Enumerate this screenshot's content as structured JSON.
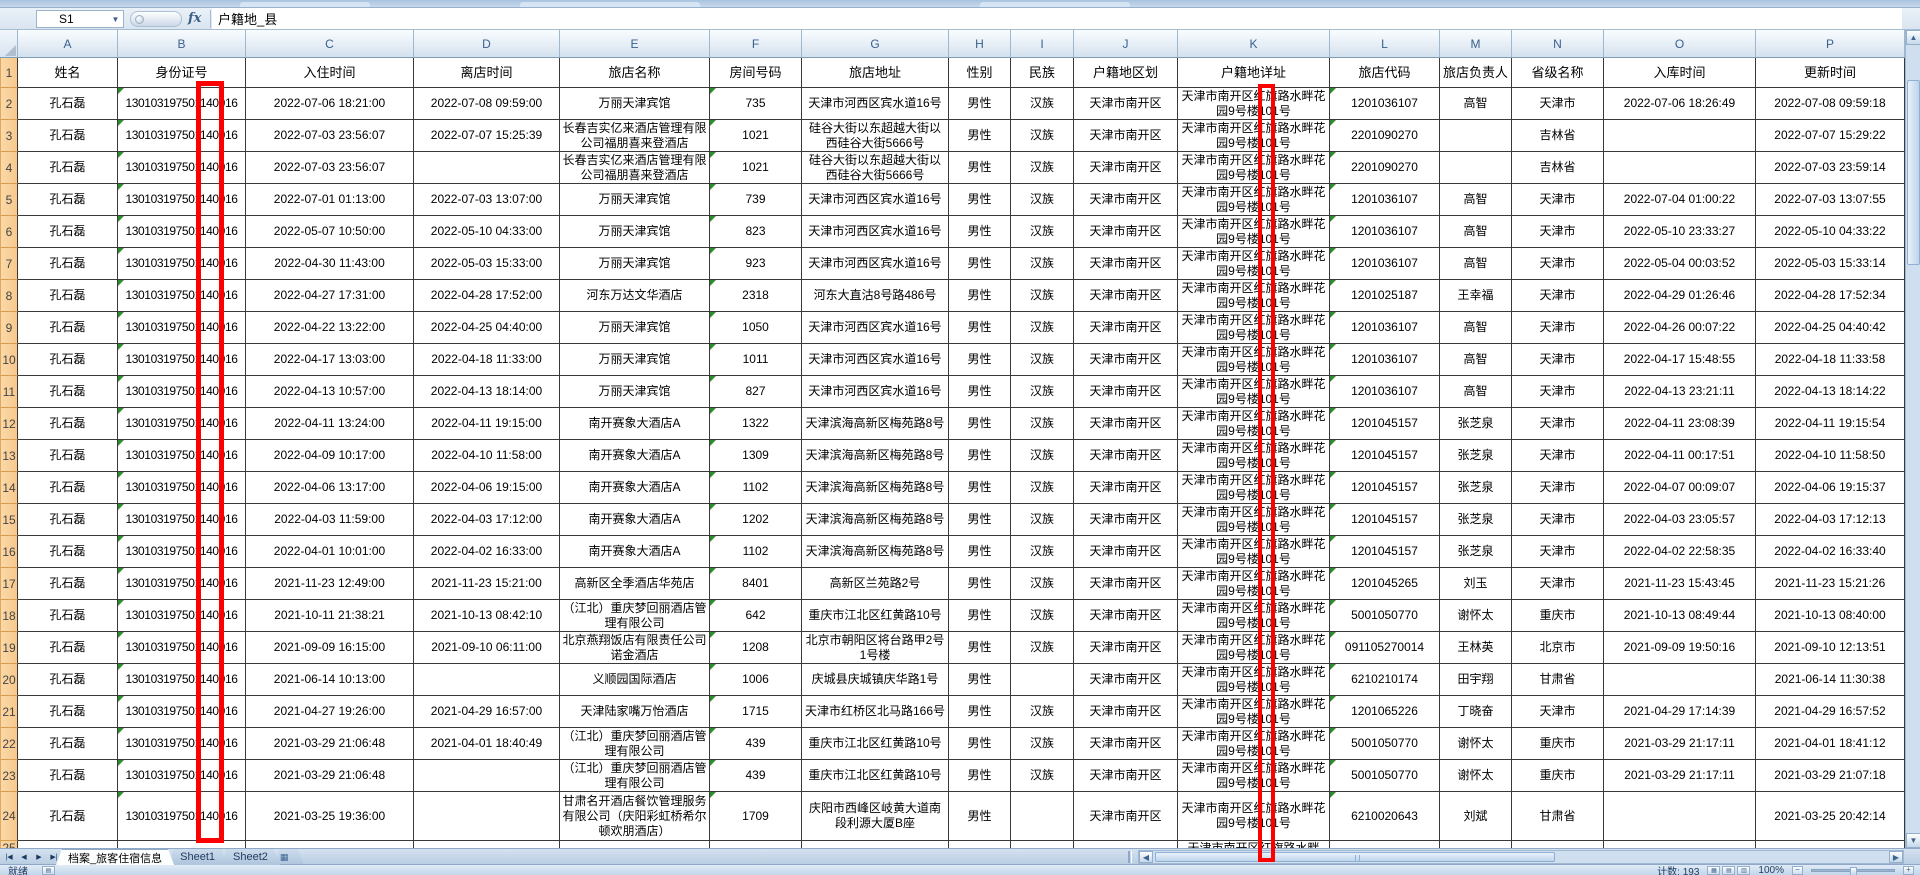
{
  "formula_bar": {
    "name_box": "S1",
    "formula": "户籍地_县",
    "fx": "fx"
  },
  "grid": {
    "column_letters": [
      "A",
      "B",
      "C",
      "D",
      "E",
      "F",
      "G",
      "H",
      "I",
      "J",
      "K",
      "L",
      "M",
      "N",
      "O",
      "P"
    ],
    "headers": [
      "姓名",
      "身份证号",
      "入住时间",
      "离店时间",
      "旅店名称",
      "房间号码",
      "旅店地址",
      "性别",
      "民族",
      "户籍地区划",
      "户籍地详址",
      "旅店代码",
      "旅店负责人",
      "省级名称",
      "入库时间",
      "更新时间"
    ],
    "rows": [
      {
        "n": "2",
        "name": "孔石磊",
        "id": "130103197501140016",
        "checkin": "2022-07-06 18:21:00",
        "checkout": "2022-07-08 09:59:00",
        "hotel": "万丽天津宾馆",
        "room": "735",
        "hotel_addr": "天津市河西区宾水道16号",
        "gender": "男性",
        "ethnicity": "汉族",
        "region": "天津市南开区",
        "addr": "天津市南开区红旗路水畔花园9号楼101号",
        "code": "1201036107",
        "manager": "高智",
        "province": "天津市",
        "entry": "2022-07-06 18:26:49",
        "update": "2022-07-08 09:59:18"
      },
      {
        "n": "3",
        "name": "孔石磊",
        "id": "130103197501140016",
        "checkin": "2022-07-03 23:56:07",
        "checkout": "2022-07-07 15:25:39",
        "hotel": "长春吉实亿来酒店管理有限公司福朋喜来登酒店",
        "room": "1021",
        "hotel_addr": "硅谷大街以东超越大街以西硅谷大街5666号",
        "gender": "男性",
        "ethnicity": "汉族",
        "region": "天津市南开区",
        "addr": "天津市南开区红旗路水畔花园9号楼101号",
        "code": "2201090270",
        "manager": "",
        "province": "吉林省",
        "entry": "",
        "update": "2022-07-07 15:29:22"
      },
      {
        "n": "4",
        "name": "孔石磊",
        "id": "130103197501140016",
        "checkin": "2022-07-03 23:56:07",
        "checkout": "",
        "hotel": "长春吉实亿来酒店管理有限公司福朋喜来登酒店",
        "room": "1021",
        "hotel_addr": "硅谷大街以东超越大街以西硅谷大街5666号",
        "gender": "男性",
        "ethnicity": "汉族",
        "region": "天津市南开区",
        "addr": "天津市南开区红旗路水畔花园9号楼101号",
        "code": "2201090270",
        "manager": "",
        "province": "吉林省",
        "entry": "",
        "update": "2022-07-03 23:59:14"
      },
      {
        "n": "5",
        "name": "孔石磊",
        "id": "130103197501140016",
        "checkin": "2022-07-01 01:13:00",
        "checkout": "2022-07-03 13:07:00",
        "hotel": "万丽天津宾馆",
        "room": "739",
        "hotel_addr": "天津市河西区宾水道16号",
        "gender": "男性",
        "ethnicity": "汉族",
        "region": "天津市南开区",
        "addr": "天津市南开区红旗路水畔花园9号楼101号",
        "code": "1201036107",
        "manager": "高智",
        "province": "天津市",
        "entry": "2022-07-04 01:00:22",
        "update": "2022-07-03 13:07:55"
      },
      {
        "n": "6",
        "name": "孔石磊",
        "id": "130103197501140016",
        "checkin": "2022-05-07 10:50:00",
        "checkout": "2022-05-10 04:33:00",
        "hotel": "万丽天津宾馆",
        "room": "823",
        "hotel_addr": "天津市河西区宾水道16号",
        "gender": "男性",
        "ethnicity": "汉族",
        "region": "天津市南开区",
        "addr": "天津市南开区红旗路水畔花园9号楼101号",
        "code": "1201036107",
        "manager": "高智",
        "province": "天津市",
        "entry": "2022-05-10 23:33:27",
        "update": "2022-05-10 04:33:22"
      },
      {
        "n": "7",
        "name": "孔石磊",
        "id": "130103197501140016",
        "checkin": "2022-04-30 11:43:00",
        "checkout": "2022-05-03 15:33:00",
        "hotel": "万丽天津宾馆",
        "room": "923",
        "hotel_addr": "天津市河西区宾水道16号",
        "gender": "男性",
        "ethnicity": "汉族",
        "region": "天津市南开区",
        "addr": "天津市南开区红旗路水畔花园9号楼101号",
        "code": "1201036107",
        "manager": "高智",
        "province": "天津市",
        "entry": "2022-05-04 00:03:52",
        "update": "2022-05-03 15:33:14"
      },
      {
        "n": "8",
        "name": "孔石磊",
        "id": "130103197501140016",
        "checkin": "2022-04-27 17:31:00",
        "checkout": "2022-04-28 17:52:00",
        "hotel": "河东万达文华酒店",
        "room": "2318",
        "hotel_addr": "河东大直沽8号路486号",
        "gender": "男性",
        "ethnicity": "汉族",
        "region": "天津市南开区",
        "addr": "天津市南开区红旗路水畔花园9号楼101号",
        "code": "1201025187",
        "manager": "王幸福",
        "province": "天津市",
        "entry": "2022-04-29 01:26:46",
        "update": "2022-04-28 17:52:34"
      },
      {
        "n": "9",
        "name": "孔石磊",
        "id": "130103197501140016",
        "checkin": "2022-04-22 13:22:00",
        "checkout": "2022-04-25 04:40:00",
        "hotel": "万丽天津宾馆",
        "room": "1050",
        "hotel_addr": "天津市河西区宾水道16号",
        "gender": "男性",
        "ethnicity": "汉族",
        "region": "天津市南开区",
        "addr": "天津市南开区红旗路水畔花园9号楼101号",
        "code": "1201036107",
        "manager": "高智",
        "province": "天津市",
        "entry": "2022-04-26 00:07:22",
        "update": "2022-04-25 04:40:42"
      },
      {
        "n": "10",
        "name": "孔石磊",
        "id": "130103197501140016",
        "checkin": "2022-04-17 13:03:00",
        "checkout": "2022-04-18 11:33:00",
        "hotel": "万丽天津宾馆",
        "room": "1011",
        "hotel_addr": "天津市河西区宾水道16号",
        "gender": "男性",
        "ethnicity": "汉族",
        "region": "天津市南开区",
        "addr": "天津市南开区红旗路水畔花园9号楼101号",
        "code": "1201036107",
        "manager": "高智",
        "province": "天津市",
        "entry": "2022-04-17 15:48:55",
        "update": "2022-04-18 11:33:58"
      },
      {
        "n": "11",
        "name": "孔石磊",
        "id": "130103197501140016",
        "checkin": "2022-04-13 10:57:00",
        "checkout": "2022-04-13 18:14:00",
        "hotel": "万丽天津宾馆",
        "room": "827",
        "hotel_addr": "天津市河西区宾水道16号",
        "gender": "男性",
        "ethnicity": "汉族",
        "region": "天津市南开区",
        "addr": "天津市南开区红旗路水畔花园9号楼101号",
        "code": "1201036107",
        "manager": "高智",
        "province": "天津市",
        "entry": "2022-04-13 23:21:11",
        "update": "2022-04-13 18:14:22"
      },
      {
        "n": "12",
        "name": "孔石磊",
        "id": "130103197501140016",
        "checkin": "2022-04-11 13:24:00",
        "checkout": "2022-04-11 19:15:00",
        "hotel": "南开赛象大酒店A",
        "room": "1322",
        "hotel_addr": "天津滨海高新区梅苑路8号",
        "gender": "男性",
        "ethnicity": "汉族",
        "region": "天津市南开区",
        "addr": "天津市南开区红旗路水畔花园9号楼101号",
        "code": "1201045157",
        "manager": "张芝泉",
        "province": "天津市",
        "entry": "2022-04-11 23:08:39",
        "update": "2022-04-11 19:15:54"
      },
      {
        "n": "13",
        "name": "孔石磊",
        "id": "130103197501140016",
        "checkin": "2022-04-09 10:17:00",
        "checkout": "2022-04-10 11:58:00",
        "hotel": "南开赛象大酒店A",
        "room": "1309",
        "hotel_addr": "天津滨海高新区梅苑路8号",
        "gender": "男性",
        "ethnicity": "汉族",
        "region": "天津市南开区",
        "addr": "天津市南开区红旗路水畔花园9号楼101号",
        "code": "1201045157",
        "manager": "张芝泉",
        "province": "天津市",
        "entry": "2022-04-11 00:17:51",
        "update": "2022-04-10 11:58:50"
      },
      {
        "n": "14",
        "name": "孔石磊",
        "id": "130103197501140016",
        "checkin": "2022-04-06 13:17:00",
        "checkout": "2022-04-06 19:15:00",
        "hotel": "南开赛象大酒店A",
        "room": "1102",
        "hotel_addr": "天津滨海高新区梅苑路8号",
        "gender": "男性",
        "ethnicity": "汉族",
        "region": "天津市南开区",
        "addr": "天津市南开区红旗路水畔花园9号楼101号",
        "code": "1201045157",
        "manager": "张芝泉",
        "province": "天津市",
        "entry": "2022-04-07 00:09:07",
        "update": "2022-04-06 19:15:37"
      },
      {
        "n": "15",
        "name": "孔石磊",
        "id": "130103197501140016",
        "checkin": "2022-04-03 11:59:00",
        "checkout": "2022-04-03 17:12:00",
        "hotel": "南开赛象大酒店A",
        "room": "1202",
        "hotel_addr": "天津滨海高新区梅苑路8号",
        "gender": "男性",
        "ethnicity": "汉族",
        "region": "天津市南开区",
        "addr": "天津市南开区红旗路水畔花园9号楼101号",
        "code": "1201045157",
        "manager": "张芝泉",
        "province": "天津市",
        "entry": "2022-04-03 23:05:57",
        "update": "2022-04-03 17:12:13"
      },
      {
        "n": "16",
        "name": "孔石磊",
        "id": "130103197501140016",
        "checkin": "2022-04-01 10:01:00",
        "checkout": "2022-04-02 16:33:00",
        "hotel": "南开赛象大酒店A",
        "room": "1102",
        "hotel_addr": "天津滨海高新区梅苑路8号",
        "gender": "男性",
        "ethnicity": "汉族",
        "region": "天津市南开区",
        "addr": "天津市南开区红旗路水畔花园9号楼101号",
        "code": "1201045157",
        "manager": "张芝泉",
        "province": "天津市",
        "entry": "2022-04-02 22:58:35",
        "update": "2022-04-02 16:33:40"
      },
      {
        "n": "17",
        "name": "孔石磊",
        "id": "130103197501140016",
        "checkin": "2021-11-23 12:49:00",
        "checkout": "2021-11-23 15:21:00",
        "hotel": "高新区全季酒店华苑店",
        "room": "8401",
        "hotel_addr": "高新区兰苑路2号",
        "gender": "男性",
        "ethnicity": "汉族",
        "region": "天津市南开区",
        "addr": "天津市南开区红旗路水畔花园9号楼101号",
        "code": "1201045265",
        "manager": "刘玉",
        "province": "天津市",
        "entry": "2021-11-23 15:43:45",
        "update": "2021-11-23 15:21:26"
      },
      {
        "n": "18",
        "name": "孔石磊",
        "id": "130103197501140016",
        "checkin": "2021-10-11 21:38:21",
        "checkout": "2021-10-13 08:42:10",
        "hotel": "（江北）重庆梦回丽酒店管理有限公司",
        "room": "642",
        "hotel_addr": "重庆市江北区红黄路10号",
        "gender": "男性",
        "ethnicity": "汉族",
        "region": "天津市南开区",
        "addr": "天津市南开区红旗路水畔花园9号楼101号",
        "code": "5001050770",
        "manager": "谢怀太",
        "province": "重庆市",
        "entry": "2021-10-13 08:49:44",
        "update": "2021-10-13 08:40:00"
      },
      {
        "n": "19",
        "name": "孔石磊",
        "id": "130103197501140016",
        "checkin": "2021-09-09 16:15:00",
        "checkout": "2021-09-10 06:11:00",
        "hotel": "北京燕翔饭店有限责任公司诺金酒店",
        "room": "1208",
        "hotel_addr": "北京市朝阳区将台路甲2号1号楼",
        "gender": "男性",
        "ethnicity": "汉族",
        "region": "天津市南开区",
        "addr": "天津市南开区红旗路水畔花园9号楼101号",
        "code": "091105270014",
        "manager": "王林英",
        "province": "北京市",
        "entry": "2021-09-09 19:50:16",
        "update": "2021-09-10 12:13:51"
      },
      {
        "n": "20",
        "name": "孔石磊",
        "id": "130103197501140016",
        "checkin": "2021-06-14 10:13:00",
        "checkout": "",
        "hotel": "义顺园国际酒店",
        "room": "1006",
        "hotel_addr": "庆城县庆城镇庆华路1号",
        "gender": "男性",
        "ethnicity": "",
        "region": "天津市南开区",
        "addr": "天津市南开区红旗路水畔花园9号楼101号",
        "code": "6210210174",
        "manager": "田宇翔",
        "province": "甘肃省",
        "entry": "",
        "update": "2021-06-14 11:30:38"
      },
      {
        "n": "21",
        "name": "孔石磊",
        "id": "130103197501140016",
        "checkin": "2021-04-27 19:26:00",
        "checkout": "2021-04-29 16:57:00",
        "hotel": "天津陆家嘴万怡酒店",
        "room": "1715",
        "hotel_addr": "天津市红桥区北马路166号",
        "gender": "男性",
        "ethnicity": "汉族",
        "region": "天津市南开区",
        "addr": "天津市南开区红旗路水畔花园9号楼101号",
        "code": "1201065226",
        "manager": "丁晓奋",
        "province": "天津市",
        "entry": "2021-04-29 17:14:39",
        "update": "2021-04-29 16:57:52"
      },
      {
        "n": "22",
        "name": "孔石磊",
        "id": "130103197501140016",
        "checkin": "2021-03-29 21:06:48",
        "checkout": "2021-04-01 18:40:49",
        "hotel": "（江北）重庆梦回丽酒店管理有限公司",
        "room": "439",
        "hotel_addr": "重庆市江北区红黄路10号",
        "gender": "男性",
        "ethnicity": "汉族",
        "region": "天津市南开区",
        "addr": "天津市南开区红旗路水畔花园9号楼101号",
        "code": "5001050770",
        "manager": "谢怀太",
        "province": "重庆市",
        "entry": "2021-03-29 21:17:11",
        "update": "2021-04-01 18:41:12"
      },
      {
        "n": "23",
        "name": "孔石磊",
        "id": "130103197501140016",
        "checkin": "2021-03-29 21:06:48",
        "checkout": "",
        "hotel": "（江北）重庆梦回丽酒店管理有限公司",
        "room": "439",
        "hotel_addr": "重庆市江北区红黄路10号",
        "gender": "男性",
        "ethnicity": "汉族",
        "region": "天津市南开区",
        "addr": "天津市南开区红旗路水畔花园9号楼101号",
        "code": "5001050770",
        "manager": "谢怀太",
        "province": "重庆市",
        "entry": "2021-03-29 21:17:11",
        "update": "2021-03-29 21:07:18"
      },
      {
        "n": "24",
        "name": "孔石磊",
        "id": "130103197501140016",
        "checkin": "2021-03-25 19:36:00",
        "checkout": "",
        "hotel": "甘肃名开酒店餐饮管理服务有限公司（庆阳彩虹桥希尔顿欢朋酒店）",
        "room": "1709",
        "hotel_addr": "庆阳市西峰区岐黄大道南段利源大厦B座",
        "gender": "男性",
        "ethnicity": "",
        "region": "天津市南开区",
        "addr": "天津市南开区红旗路水畔花园9号楼101号",
        "code": "6210020643",
        "manager": "刘斌",
        "province": "甘肃省",
        "entry": "",
        "update": "2021-03-25 20:42:14"
      }
    ],
    "partial_row": {
      "n": "25",
      "addr": "天津市南开区红旗路水畔"
    }
  },
  "sheet_tabs": {
    "tabs": [
      "档案_旅客住宿信息",
      "Sheet1",
      "Sheet2"
    ],
    "insert_icon": "▦"
  },
  "status_bar": {
    "ready": "就绪",
    "count": "计数: 193",
    "zoom": "100%"
  },
  "annotations": {
    "color": "#ff0000",
    "id_highlight": "14",
    "note": "red boxes over ID birth-day digits and household address column"
  }
}
